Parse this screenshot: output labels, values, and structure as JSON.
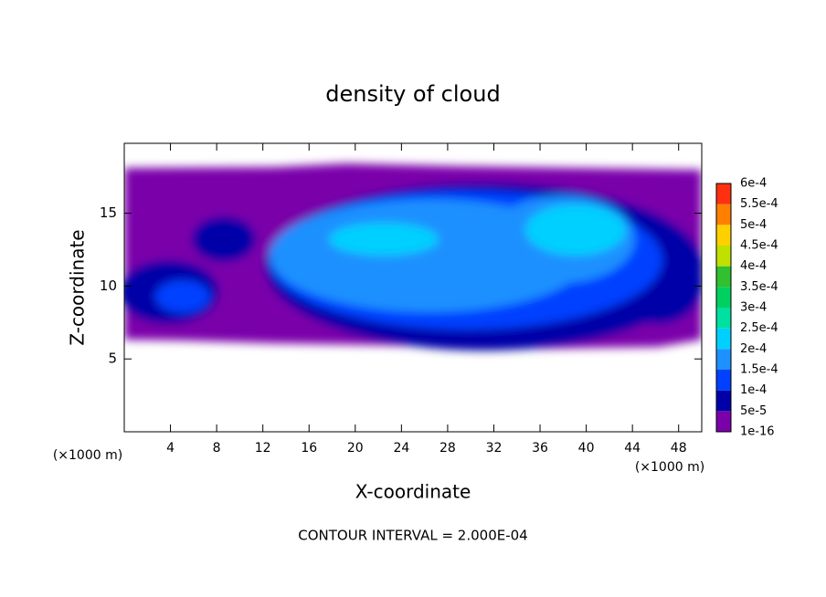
{
  "chart_data": {
    "type": "contour",
    "title": "density of cloud",
    "x_label": "X-coordinate",
    "y_label": "Z-coordinate",
    "axis_unit": "(×1000 m)",
    "annotation": "CONTOUR INTERVAL = 2.000E-04",
    "xlim": [
      0,
      50
    ],
    "ylim": [
      0,
      19.8
    ],
    "xticks": [
      4,
      8,
      12,
      16,
      20,
      24,
      28,
      32,
      36,
      40,
      44,
      48
    ],
    "yticks": [
      5,
      10,
      15
    ],
    "colorbar": {
      "levels": [
        {
          "value": 1e-16,
          "label": "1e-16"
        },
        {
          "value": 5e-05,
          "label": "5e-5"
        },
        {
          "value": 0.0001,
          "label": "1e-4"
        },
        {
          "value": 0.00015,
          "label": "1.5e-4"
        },
        {
          "value": 0.0002,
          "label": "2e-4"
        },
        {
          "value": 0.00025,
          "label": "2.5e-4"
        },
        {
          "value": 0.0003,
          "label": "3e-4"
        },
        {
          "value": 0.00035,
          "label": "3.5e-4"
        },
        {
          "value": 0.0004,
          "label": "4e-4"
        },
        {
          "value": 0.00045,
          "label": "4.5e-4"
        },
        {
          "value": 0.0005,
          "label": "5e-4"
        },
        {
          "value": 0.00055,
          "label": "5.5e-4"
        },
        {
          "value": 0.0006,
          "label": "6e-4"
        }
      ],
      "colors": [
        "#7a00aa",
        "#0000a8",
        "#0040ff",
        "#1e90ff",
        "#00d0ff",
        "#00e0a0",
        "#00d060",
        "#30c030",
        "#c0e000",
        "#ffd000",
        "#ff8000",
        "#ff3010"
      ]
    }
  }
}
